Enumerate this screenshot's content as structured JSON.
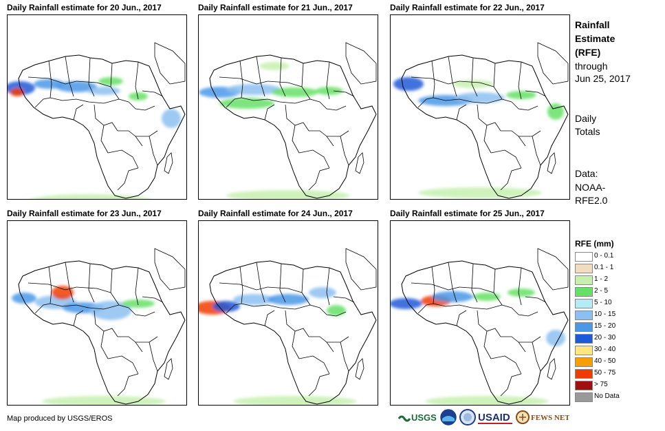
{
  "panels": [
    {
      "title": "Daily Rainfall estimate for 20 Jun., 2017",
      "variant": 0
    },
    {
      "title": "Daily Rainfall estimate for 21 Jun., 2017",
      "variant": 1
    },
    {
      "title": "Daily Rainfall estimate for 22 Jun., 2017",
      "variant": 2
    },
    {
      "title": "Daily Rainfall estimate for 23 Jun., 2017",
      "variant": 3
    },
    {
      "title": "Daily Rainfall estimate for 24 Jun., 2017",
      "variant": 4
    },
    {
      "title": "Daily Rainfall estimate for 25 Jun., 2017",
      "variant": 5
    }
  ],
  "side": {
    "title_lines": [
      "Rainfall",
      "Estimate",
      "(RFE)"
    ],
    "through": "through",
    "date": "Jun 25, 2017",
    "daily": "Daily",
    "totals": "Totals",
    "data_label": "Data:",
    "source1": "NOAA-",
    "source2": "RFE2.0"
  },
  "legend": {
    "title": "RFE (mm)",
    "items": [
      {
        "label": "0 - 0.1",
        "color": "#ffffff"
      },
      {
        "label": "0.1 - 1",
        "color": "#f1dcc0"
      },
      {
        "label": "1 - 2",
        "color": "#c7f0b0"
      },
      {
        "label": "2 - 5",
        "color": "#66e066"
      },
      {
        "label": "5 - 10",
        "color": "#b4ecf5"
      },
      {
        "label": "10 - 15",
        "color": "#8cc0f0"
      },
      {
        "label": "15 - 20",
        "color": "#4a98e8"
      },
      {
        "label": "20 - 30",
        "color": "#1c5ad8"
      },
      {
        "label": "30 - 40",
        "color": "#ffe680"
      },
      {
        "label": "40 - 50",
        "color": "#f5a000"
      },
      {
        "label": "50 - 75",
        "color": "#f03c00"
      },
      {
        "label": "> 75",
        "color": "#a01010"
      },
      {
        "label": "No Data",
        "color": "#999999"
      }
    ]
  },
  "credit": "Map produced by USGS/EROS",
  "logos": {
    "usgs": "USGS",
    "usaid": "USAID",
    "fews": "FEWS NET"
  }
}
